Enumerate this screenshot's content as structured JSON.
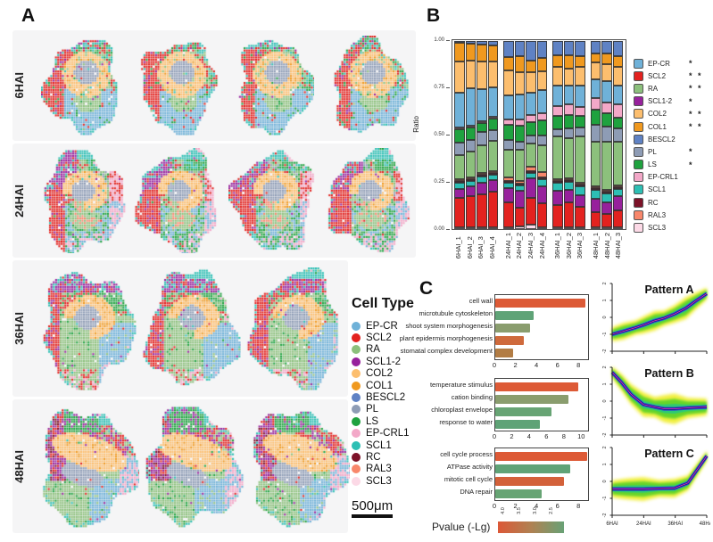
{
  "figure": {
    "panel_a_label": "A",
    "panel_b_label": "B",
    "panel_c_label": "C"
  },
  "cell_types": {
    "EP-CR": "#6fb1d8",
    "SCL2": "#e3221f",
    "RA": "#8cc07c",
    "SCL1-2": "#97219c",
    "COL2": "#fcbe6e",
    "COL1": "#f0991f",
    "BESCL2": "#5f82c4",
    "PL": "#8e9cb5",
    "LS": "#1fa23f",
    "EP-CRL1": "#f3a8c8",
    "SCL1": "#2dbfb4",
    "RC": "#7c1228",
    "RAL3": "#f8876b",
    "SCL3": "#fcd9e6"
  },
  "cell_type_order": [
    "EP-CR",
    "SCL2",
    "RA",
    "SCL1-2",
    "COL2",
    "COL1",
    "BESCL2",
    "PL",
    "LS",
    "EP-CRL1",
    "SCL1",
    "RC",
    "RAL3",
    "SCL3"
  ],
  "panelA": {
    "rows": [
      {
        "label": "6HAI",
        "sections": 4
      },
      {
        "label": "24HAI",
        "sections": 4
      },
      {
        "label": "36HAI",
        "sections": 3
      },
      {
        "label": "48HAI",
        "sections": 3
      }
    ],
    "legend_title": "Cell Type",
    "scale_bar_text": "500μm"
  },
  "panelB": {
    "ylabel": "Ratio",
    "yticks": [
      "1.00",
      "0.75",
      "0.50",
      "0.25",
      "0.00"
    ],
    "legend_sig": {
      "EP-CR": "*",
      "SCL2": "* *",
      "RA": "* *",
      "SCL1-2": "*",
      "COL2": "* *",
      "COL1": "* *",
      "BESCL2": "",
      "PL": "*",
      "LS": "*",
      "EP-CRL1": "",
      "SCL1": "",
      "RC": "",
      "RAL3": "",
      "SCL3": ""
    }
  },
  "panelC": {
    "pvalue_legend_label": "Pvalue (-Lg)",
    "pvalue_ticks": [
      "4.0",
      "3.5",
      "3.0",
      "2.5"
    ],
    "pvalue_gradient": [
      "#dc5837",
      "#b08152",
      "#68a175"
    ]
  },
  "chart_data": {
    "cell_ratio_stacked_bar": {
      "type": "bar",
      "stacked": true,
      "title": "",
      "xlabel": "",
      "ylabel": "Ratio",
      "ylim": [
        0,
        1
      ],
      "yticks": [
        0.0,
        0.25,
        0.5,
        0.75,
        1.0
      ],
      "stack_order_bottom_to_top": [
        "SCL3",
        "SCL2",
        "SCL1-2",
        "SCL1",
        "RC",
        "RAL3",
        "RA",
        "PL",
        "LS",
        "EP-CRL1",
        "EP-CR",
        "COL2",
        "COL1",
        "BESCL2"
      ],
      "groups": [
        4,
        4,
        3,
        3
      ],
      "bars": [
        {
          "sample": "6HAI_1",
          "values": [
            0.004,
            0.16,
            0.05,
            0.03,
            0.004,
            0.004,
            0.13,
            0.07,
            0.07,
            0.008,
            0.19,
            0.17,
            0.1,
            0.01
          ]
        },
        {
          "sample": "6HAI_2",
          "values": [
            0.004,
            0.17,
            0.05,
            0.03,
            0.004,
            0.004,
            0.14,
            0.06,
            0.07,
            0.008,
            0.2,
            0.15,
            0.09,
            0.015
          ]
        },
        {
          "sample": "6HAI_3",
          "values": [
            0.004,
            0.18,
            0.06,
            0.035,
            0.004,
            0.004,
            0.15,
            0.07,
            0.05,
            0.008,
            0.17,
            0.15,
            0.09,
            0.02
          ]
        },
        {
          "sample": "6HAI_4",
          "values": [
            0.004,
            0.19,
            0.065,
            0.03,
            0.004,
            0.004,
            0.16,
            0.06,
            0.06,
            0.008,
            0.16,
            0.14,
            0.085,
            0.025
          ]
        },
        {
          "sample": "24HAI_1",
          "values": [
            0.01,
            0.13,
            0.075,
            0.03,
            0.004,
            0.02,
            0.145,
            0.05,
            0.08,
            0.03,
            0.13,
            0.13,
            0.07,
            0.085
          ]
        },
        {
          "sample": "24HAI_2",
          "values": [
            0.012,
            0.1,
            0.09,
            0.03,
            0.004,
            0.012,
            0.17,
            0.04,
            0.085,
            0.035,
            0.13,
            0.12,
            0.085,
            0.08
          ]
        },
        {
          "sample": "24HAI_3",
          "values": [
            0.022,
            0.145,
            0.1,
            0.03,
            0.004,
            0.022,
            0.125,
            0.04,
            0.07,
            0.04,
            0.115,
            0.11,
            0.06,
            0.105
          ]
        },
        {
          "sample": "24HAI_4",
          "values": [
            0.01,
            0.125,
            0.09,
            0.04,
            0.004,
            0.025,
            0.145,
            0.05,
            0.08,
            0.04,
            0.12,
            0.1,
            0.07,
            0.09
          ]
        },
        {
          "sample": "36HAI_1",
          "values": [
            0.01,
            0.115,
            0.08,
            0.04,
            0.01,
            0.005,
            0.225,
            0.04,
            0.07,
            0.05,
            0.11,
            0.1,
            0.06,
            0.075
          ]
        },
        {
          "sample": "36HAI_2",
          "values": [
            0.01,
            0.13,
            0.07,
            0.04,
            0.01,
            0.005,
            0.215,
            0.05,
            0.07,
            0.06,
            0.1,
            0.09,
            0.07,
            0.075
          ]
        },
        {
          "sample": "36HAI_3",
          "values": [
            0.01,
            0.11,
            0.06,
            0.05,
            0.01,
            0.005,
            0.245,
            0.05,
            0.06,
            0.05,
            0.11,
            0.1,
            0.06,
            0.08
          ]
        },
        {
          "sample": "48HAI_1",
          "values": [
            0.01,
            0.08,
            0.07,
            0.05,
            0.01,
            0.005,
            0.235,
            0.09,
            0.08,
            0.06,
            0.1,
            0.09,
            0.05,
            0.065
          ]
        },
        {
          "sample": "48HAI_2",
          "values": [
            0.01,
            0.07,
            0.06,
            0.05,
            0.01,
            0.005,
            0.255,
            0.08,
            0.07,
            0.06,
            0.11,
            0.09,
            0.06,
            0.065
          ]
        },
        {
          "sample": "48HAI_3",
          "values": [
            0.01,
            0.09,
            0.075,
            0.04,
            0.01,
            0.005,
            0.235,
            0.07,
            0.06,
            0.07,
            0.1,
            0.1,
            0.06,
            0.08
          ]
        }
      ]
    },
    "go_enrichment": [
      {
        "type": "bar",
        "orientation": "horizontal",
        "pattern": "A",
        "terms": [
          {
            "label": "cell wall",
            "value": 8.7,
            "color": "#dd5a36"
          },
          {
            "label": "microtubule cytoskeleton",
            "value": 3.7,
            "color": "#5fa377"
          },
          {
            "label": "shoot system morphogenesis",
            "value": 3.4,
            "color": "#8a9d6e"
          },
          {
            "label": "plant epidermis morphogenesis",
            "value": 2.8,
            "color": "#cf6a3c"
          },
          {
            "label": "stomatal complex development",
            "value": 1.7,
            "color": "#b27c44"
          }
        ],
        "xticks": [
          0,
          2,
          4,
          6,
          8
        ],
        "xmax": 9
      },
      {
        "type": "bar",
        "orientation": "horizontal",
        "pattern": "B",
        "terms": [
          {
            "label": "temperature stimulus",
            "value": 9.7,
            "color": "#dd5a36"
          },
          {
            "label": "cation binding",
            "value": 8.6,
            "color": "#8a9d6e"
          },
          {
            "label": "chloroplast envelope",
            "value": 6.6,
            "color": "#67a474"
          },
          {
            "label": "response to water",
            "value": 5.2,
            "color": "#5fa377"
          }
        ],
        "xticks": [
          0,
          2,
          4,
          6,
          8,
          10
        ],
        "xmax": 10.9
      },
      {
        "type": "bar",
        "orientation": "horizontal",
        "pattern": "C",
        "terms": [
          {
            "label": "cell cycle process",
            "value": 8.9,
            "color": "#dd5a36"
          },
          {
            "label": "ATPase activity",
            "value": 7.3,
            "color": "#5fa377"
          },
          {
            "label": "mitotic cell cycle",
            "value": 6.7,
            "color": "#d3613a"
          },
          {
            "label": "DNA repair",
            "value": 4.5,
            "color": "#67a474"
          }
        ],
        "xticks": [
          0,
          2,
          4,
          6,
          8
        ],
        "xmax": 9
      }
    ],
    "expression_patterns": [
      {
        "type": "line",
        "title": "Pattern A",
        "x": [
          "6HAI",
          "24HAI",
          "36HAI",
          "48HAI"
        ],
        "mean": [
          -1.0,
          -0.35,
          0.2,
          1.4
        ],
        "ylim": [
          -2,
          2
        ],
        "yticks": [
          2,
          1,
          0,
          -1,
          -2
        ],
        "show_xlabels": false,
        "band": [
          [
            0,
            -1.0,
            0.42
          ],
          [
            0.12,
            -0.82,
            0.5
          ],
          [
            0.25,
            -0.6,
            0.42
          ],
          [
            0.33,
            -0.45,
            0.5
          ],
          [
            0.45,
            -0.2,
            0.58
          ],
          [
            0.55,
            -0.05,
            0.45
          ],
          [
            0.66,
            0.2,
            0.52
          ],
          [
            0.78,
            0.55,
            0.65
          ],
          [
            0.88,
            0.95,
            0.5
          ],
          [
            1,
            1.4,
            0.35
          ]
        ]
      },
      {
        "type": "line",
        "title": "Pattern B",
        "x": [
          "6HAI",
          "24HAI",
          "36HAI",
          "48HAI"
        ],
        "mean": [
          1.7,
          -0.2,
          -0.45,
          -0.35
        ],
        "ylim": [
          -2,
          2
        ],
        "yticks": [
          2,
          1,
          0,
          -1,
          -2
        ],
        "show_xlabels": false,
        "band": [
          [
            0,
            1.7,
            0.35
          ],
          [
            0.1,
            1.1,
            0.5
          ],
          [
            0.2,
            0.4,
            0.6
          ],
          [
            0.33,
            -0.2,
            0.72
          ],
          [
            0.45,
            -0.35,
            0.6
          ],
          [
            0.55,
            -0.45,
            0.8
          ],
          [
            0.66,
            -0.45,
            0.9
          ],
          [
            0.8,
            -0.4,
            0.6
          ],
          [
            1,
            -0.35,
            0.5
          ]
        ]
      },
      {
        "type": "line",
        "title": "Pattern C",
        "x": [
          "6HAI",
          "24HAI",
          "36HAI",
          "48HAI"
        ],
        "mean": [
          -0.45,
          -0.45,
          -0.4,
          1.5
        ],
        "ylim": [
          -2,
          2
        ],
        "yticks": [
          2,
          1,
          0,
          -1,
          -2
        ],
        "show_xlabels": true,
        "band": [
          [
            0,
            -0.45,
            0.5
          ],
          [
            0.15,
            -0.45,
            0.62
          ],
          [
            0.33,
            -0.45,
            0.7
          ],
          [
            0.5,
            -0.42,
            0.5
          ],
          [
            0.66,
            -0.4,
            0.55
          ],
          [
            0.8,
            -0.1,
            0.45
          ],
          [
            1,
            1.5,
            0.3
          ]
        ]
      }
    ]
  }
}
